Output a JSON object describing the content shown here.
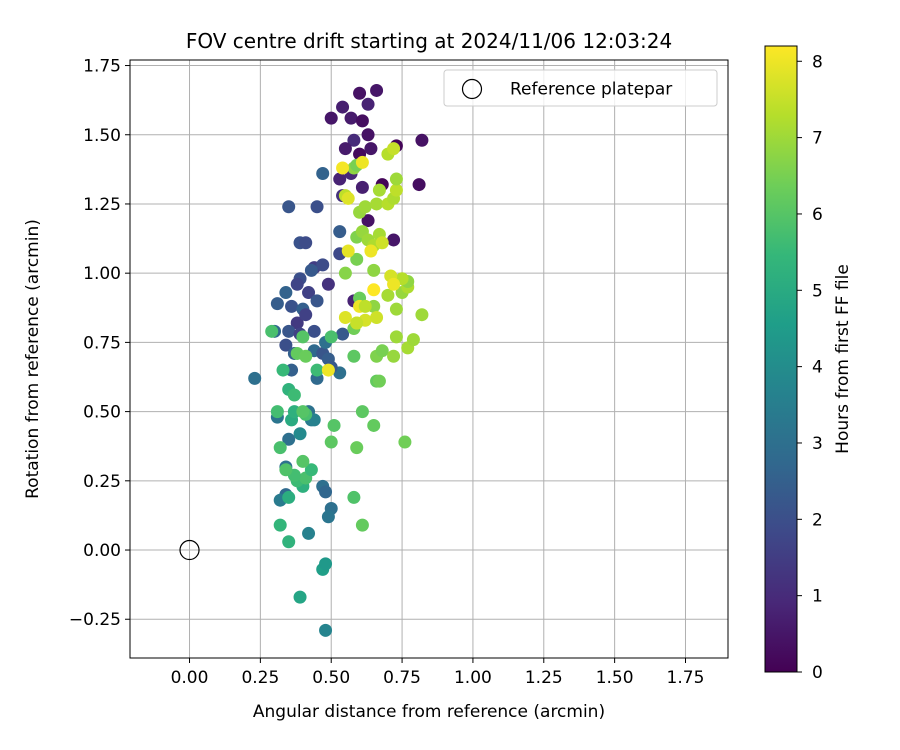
{
  "chart_data": {
    "type": "scatter",
    "title": "FOV centre drift starting at 2024/11/06 12:03:24",
    "xlabel": "Angular distance from reference (arcmin)",
    "ylabel": "Rotation from reference (arcmin)",
    "xlim": [
      -0.21,
      1.9
    ],
    "ylim": [
      -0.39,
      1.77
    ],
    "xticks": [
      0.0,
      0.25,
      0.5,
      0.75,
      1.0,
      1.25,
      1.5,
      1.75
    ],
    "xtick_labels": [
      "0.00",
      "0.25",
      "0.50",
      "0.75",
      "1.00",
      "1.25",
      "1.50",
      "1.75"
    ],
    "yticks": [
      -0.25,
      0.0,
      0.25,
      0.5,
      0.75,
      1.0,
      1.25,
      1.5,
      1.75
    ],
    "ytick_labels": [
      "−0.25",
      "0.00",
      "0.25",
      "0.50",
      "0.75",
      "1.00",
      "1.25",
      "1.50",
      "1.75"
    ],
    "grid": true,
    "legend": {
      "placement": "top-right",
      "entries": [
        {
          "label": "Reference platepar",
          "marker": "open-circle",
          "x": 0.0,
          "y": 0.0
        }
      ]
    },
    "colorbar": {
      "label": "Hours from first FF file",
      "colormap": "viridis",
      "range": [
        0,
        8.2
      ],
      "ticks": [
        0,
        1,
        2,
        3,
        4,
        5,
        6,
        7,
        8
      ],
      "tick_labels": [
        "0",
        "1",
        "2",
        "3",
        "4",
        "5",
        "6",
        "7",
        "8"
      ],
      "stops": [
        "#440154",
        "#482878",
        "#3e4989",
        "#31688e",
        "#26828e",
        "#1f9e89",
        "#35b779",
        "#6ece58",
        "#b5de2b",
        "#fde725"
      ]
    },
    "series": [
      {
        "columns": [
          "x",
          "y",
          "hours"
        ],
        "points": [
          [
            0.5,
            1.56,
            0.5
          ],
          [
            0.54,
            1.6,
            0.7
          ],
          [
            0.57,
            1.56,
            0.6
          ],
          [
            0.6,
            1.65,
            0.4
          ],
          [
            0.63,
            1.61,
            0.8
          ],
          [
            0.66,
            1.66,
            0.5
          ],
          [
            0.61,
            1.55,
            0.3
          ],
          [
            0.58,
            1.48,
            1.0
          ],
          [
            0.63,
            1.5,
            0.4
          ],
          [
            0.55,
            1.45,
            0.6
          ],
          [
            0.6,
            1.43,
            0.2
          ],
          [
            0.64,
            1.45,
            0.5
          ],
          [
            0.73,
            1.46,
            0.1
          ],
          [
            0.82,
            1.48,
            0.4
          ],
          [
            0.53,
            1.34,
            0.8
          ],
          [
            0.57,
            1.36,
            0.9
          ],
          [
            0.61,
            1.31,
            0.7
          ],
          [
            0.68,
            1.32,
            0.1
          ],
          [
            0.81,
            1.32,
            0.3
          ],
          [
            0.54,
            1.28,
            1.2
          ],
          [
            0.63,
            1.19,
            0.4
          ],
          [
            0.72,
            1.12,
            0.5
          ],
          [
            0.58,
            0.9,
            0.8
          ],
          [
            0.47,
            1.36,
            2.6
          ],
          [
            0.35,
            1.24,
            2.2
          ],
          [
            0.45,
            1.24,
            2.0
          ],
          [
            0.39,
            1.11,
            2.1
          ],
          [
            0.41,
            1.11,
            1.9
          ],
          [
            0.53,
            1.15,
            2.4
          ],
          [
            0.53,
            1.07,
            1.8
          ],
          [
            0.44,
            1.02,
            1.5
          ],
          [
            0.47,
            1.03,
            1.9
          ],
          [
            0.43,
            1.01,
            2.3
          ],
          [
            0.39,
            0.98,
            2.0
          ],
          [
            0.38,
            0.96,
            1.7
          ],
          [
            0.49,
            0.96,
            1.2
          ],
          [
            0.42,
            0.93,
            1.6
          ],
          [
            0.34,
            0.93,
            2.6
          ],
          [
            0.31,
            0.89,
            2.4
          ],
          [
            0.36,
            0.88,
            2.1
          ],
          [
            0.4,
            0.87,
            2.5
          ],
          [
            0.45,
            0.9,
            2.2
          ],
          [
            0.38,
            0.82,
            1.4
          ],
          [
            0.41,
            0.85,
            1.6
          ],
          [
            0.3,
            0.79,
            2.7
          ],
          [
            0.35,
            0.79,
            2.2
          ],
          [
            0.39,
            0.78,
            1.6
          ],
          [
            0.44,
            0.79,
            2.0
          ],
          [
            0.54,
            0.78,
            2.3
          ],
          [
            0.34,
            0.74,
            2.0
          ],
          [
            0.37,
            0.71,
            2.5
          ],
          [
            0.44,
            0.72,
            2.8
          ],
          [
            0.47,
            0.71,
            2.2
          ],
          [
            0.48,
            0.75,
            3.0
          ],
          [
            0.49,
            0.69,
            2.4
          ],
          [
            0.36,
            0.65,
            2.5
          ],
          [
            0.45,
            0.62,
            2.8
          ],
          [
            0.23,
            0.62,
            3.0
          ],
          [
            0.53,
            0.64,
            3.0
          ],
          [
            0.5,
            0.66,
            2.3
          ],
          [
            0.31,
            0.48,
            3.2
          ],
          [
            0.35,
            0.4,
            3.0
          ],
          [
            0.43,
            0.47,
            3.4
          ],
          [
            0.39,
            0.42,
            3.9
          ],
          [
            0.42,
            0.5,
            3.1
          ],
          [
            0.44,
            0.47,
            3.6
          ],
          [
            0.34,
            0.3,
            3.1
          ],
          [
            0.34,
            0.2,
            2.8
          ],
          [
            0.32,
            0.18,
            3.4
          ],
          [
            0.47,
            0.23,
            3.0
          ],
          [
            0.48,
            0.21,
            2.7
          ],
          [
            0.5,
            0.15,
            3.0
          ],
          [
            0.49,
            0.12,
            3.2
          ],
          [
            0.42,
            0.06,
            3.6
          ],
          [
            0.48,
            -0.29,
            3.7
          ],
          [
            0.39,
            -0.17,
            4.8
          ],
          [
            0.47,
            -0.07,
            4.6
          ],
          [
            0.48,
            -0.05,
            4.4
          ],
          [
            0.35,
            0.03,
            5.3
          ],
          [
            0.32,
            0.09,
            5.4
          ],
          [
            0.35,
            0.19,
            5.1
          ],
          [
            0.4,
            0.23,
            5.2
          ],
          [
            0.38,
            0.25,
            5.6
          ],
          [
            0.41,
            0.26,
            5.8
          ],
          [
            0.43,
            0.29,
            5.5
          ],
          [
            0.37,
            0.27,
            5.7
          ],
          [
            0.34,
            0.29,
            5.9
          ],
          [
            0.4,
            0.32,
            6.0
          ],
          [
            0.32,
            0.37,
            5.8
          ],
          [
            0.36,
            0.47,
            5.0
          ],
          [
            0.37,
            0.5,
            5.2
          ],
          [
            0.31,
            0.5,
            5.7
          ],
          [
            0.35,
            0.58,
            5.3
          ],
          [
            0.37,
            0.56,
            5.6
          ],
          [
            0.41,
            0.49,
            5.8
          ],
          [
            0.4,
            0.5,
            6.0
          ],
          [
            0.5,
            0.39,
            6.1
          ],
          [
            0.51,
            0.45,
            6.0
          ],
          [
            0.58,
            0.19,
            5.9
          ],
          [
            0.61,
            0.09,
            6.2
          ],
          [
            0.59,
            0.37,
            6.3
          ],
          [
            0.61,
            0.5,
            6.1
          ],
          [
            0.65,
            0.45,
            6.2
          ],
          [
            0.76,
            0.39,
            6.4
          ],
          [
            0.29,
            0.79,
            5.8
          ],
          [
            0.33,
            0.65,
            5.5
          ],
          [
            0.38,
            0.71,
            6.2
          ],
          [
            0.4,
            0.77,
            6.0
          ],
          [
            0.41,
            0.7,
            6.3
          ],
          [
            0.45,
            0.65,
            5.6
          ],
          [
            0.5,
            0.77,
            5.8
          ],
          [
            0.58,
            0.7,
            6.1
          ],
          [
            0.58,
            0.8,
            6.4
          ],
          [
            0.6,
            0.91,
            6.3
          ],
          [
            0.66,
            0.7,
            6.6
          ],
          [
            0.68,
            0.72,
            6.5
          ],
          [
            0.66,
            0.61,
            6.2
          ],
          [
            0.67,
            0.61,
            6.4
          ],
          [
            0.72,
            0.7,
            6.9
          ],
          [
            0.73,
            0.77,
            7.0
          ],
          [
            0.77,
            0.73,
            7.1
          ],
          [
            0.79,
            0.76,
            7.0
          ],
          [
            0.82,
            0.85,
            7.0
          ],
          [
            0.65,
            0.88,
            6.8
          ],
          [
            0.73,
            0.87,
            7.0
          ],
          [
            0.7,
            0.92,
            7.1
          ],
          [
            0.75,
            0.93,
            6.9
          ],
          [
            0.77,
            0.95,
            7.2
          ],
          [
            0.77,
            0.97,
            6.8
          ],
          [
            0.75,
            0.98,
            7.3
          ],
          [
            0.55,
            1.0,
            6.7
          ],
          [
            0.65,
            1.01,
            6.8
          ],
          [
            0.59,
            1.05,
            6.5
          ],
          [
            0.59,
            1.13,
            6.6
          ],
          [
            0.61,
            1.15,
            6.9
          ],
          [
            0.63,
            1.12,
            7.0
          ],
          [
            0.65,
            1.1,
            7.2
          ],
          [
            0.67,
            1.14,
            7.1
          ],
          [
            0.6,
            1.22,
            6.9
          ],
          [
            0.62,
            1.24,
            7.0
          ],
          [
            0.66,
            1.25,
            7.1
          ],
          [
            0.7,
            1.25,
            7.3
          ],
          [
            0.72,
            1.27,
            7.2
          ],
          [
            0.58,
            1.38,
            6.8
          ],
          [
            0.55,
            1.28,
            7.4
          ],
          [
            0.59,
            1.39,
            6.5
          ],
          [
            0.7,
            1.43,
            7.3
          ],
          [
            0.72,
            1.45,
            7.5
          ],
          [
            0.67,
            1.3,
            7.1
          ],
          [
            0.73,
            1.3,
            7.4
          ],
          [
            0.73,
            1.34,
            7.0
          ],
          [
            0.61,
            1.4,
            8.0
          ],
          [
            0.56,
            1.27,
            7.8
          ],
          [
            0.54,
            1.38,
            8.1
          ],
          [
            0.56,
            1.08,
            7.9
          ],
          [
            0.64,
            1.08,
            8.0
          ],
          [
            0.68,
            1.11,
            7.6
          ],
          [
            0.71,
            0.99,
            7.7
          ],
          [
            0.72,
            0.96,
            8.0
          ],
          [
            0.65,
            0.94,
            8.2
          ],
          [
            0.6,
            0.88,
            8.0
          ],
          [
            0.62,
            0.83,
            7.7
          ],
          [
            0.55,
            0.84,
            7.8
          ],
          [
            0.66,
            0.84,
            7.6
          ],
          [
            0.59,
            0.82,
            7.8
          ],
          [
            0.62,
            0.88,
            7.4
          ],
          [
            0.49,
            0.65,
            8.0
          ],
          [
            0.59,
            0.82,
            7.5
          ]
        ]
      }
    ]
  }
}
